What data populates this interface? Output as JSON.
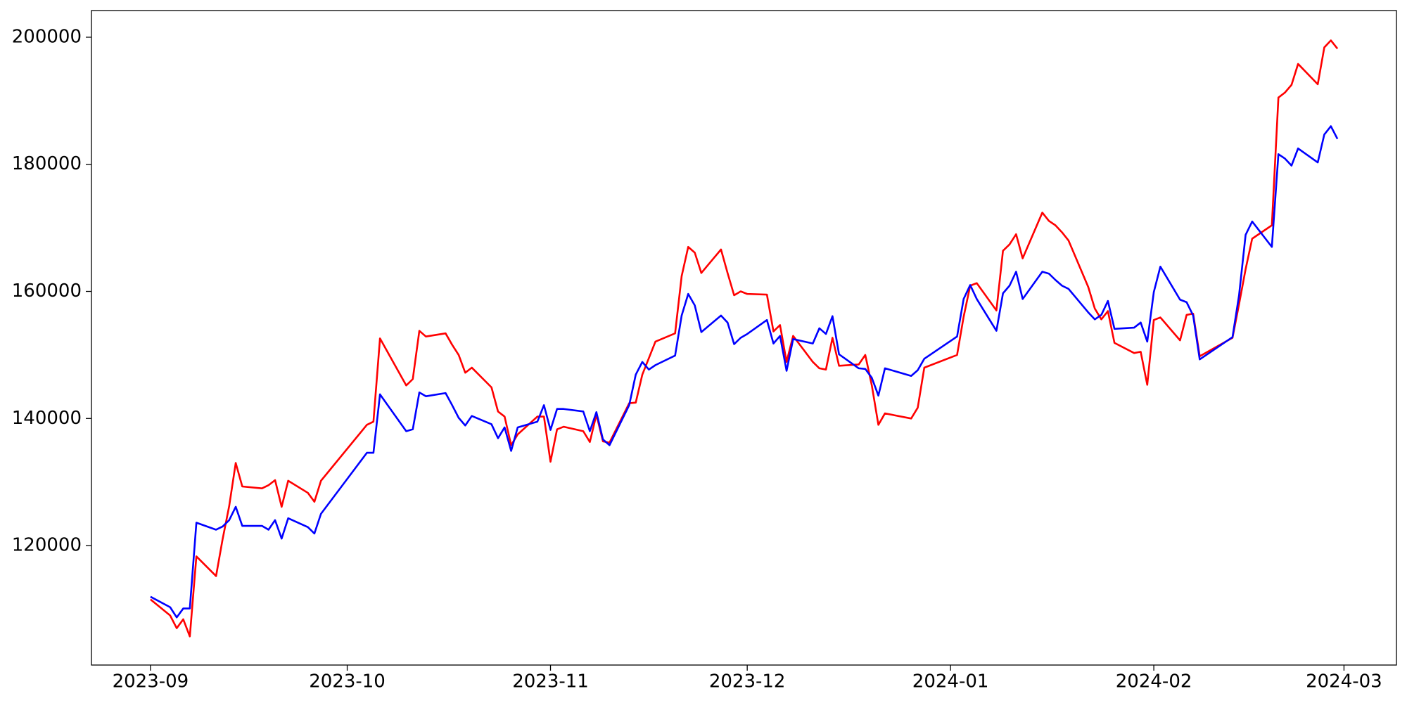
{
  "chart_data": {
    "type": "line",
    "x": [
      "2023-09-01",
      "2023-09-04",
      "2023-09-05",
      "2023-09-06",
      "2023-09-07",
      "2023-09-08",
      "2023-09-11",
      "2023-09-12",
      "2023-09-13",
      "2023-09-14",
      "2023-09-15",
      "2023-09-18",
      "2023-09-19",
      "2023-09-20",
      "2023-09-21",
      "2023-09-22",
      "2023-09-25",
      "2023-09-26",
      "2023-09-27",
      "2023-10-04",
      "2023-10-05",
      "2023-10-06",
      "2023-10-10",
      "2023-10-11",
      "2023-10-12",
      "2023-10-13",
      "2023-10-16",
      "2023-10-17",
      "2023-10-18",
      "2023-10-19",
      "2023-10-20",
      "2023-10-23",
      "2023-10-24",
      "2023-10-25",
      "2023-10-26",
      "2023-10-27",
      "2023-10-30",
      "2023-10-31",
      "2023-11-01",
      "2023-11-02",
      "2023-11-03",
      "2023-11-06",
      "2023-11-07",
      "2023-11-08",
      "2023-11-09",
      "2023-11-10",
      "2023-11-13",
      "2023-11-14",
      "2023-11-15",
      "2023-11-16",
      "2023-11-17",
      "2023-11-20",
      "2023-11-21",
      "2023-11-22",
      "2023-11-23",
      "2023-11-24",
      "2023-11-27",
      "2023-11-28",
      "2023-11-29",
      "2023-11-30",
      "2023-12-01",
      "2023-12-04",
      "2023-12-05",
      "2023-12-06",
      "2023-12-07",
      "2023-12-08",
      "2023-12-11",
      "2023-12-12",
      "2023-12-13",
      "2023-12-14",
      "2023-12-15",
      "2023-12-18",
      "2023-12-19",
      "2023-12-20",
      "2023-12-21",
      "2023-12-22",
      "2023-12-26",
      "2023-12-27",
      "2023-12-28",
      "2024-01-02",
      "2024-01-03",
      "2024-01-04",
      "2024-01-05",
      "2024-01-08",
      "2024-01-09",
      "2024-01-10",
      "2024-01-11",
      "2024-01-12",
      "2024-01-15",
      "2024-01-16",
      "2024-01-17",
      "2024-01-18",
      "2024-01-19",
      "2024-01-22",
      "2024-01-23",
      "2024-01-24",
      "2024-01-25",
      "2024-01-26",
      "2024-01-29",
      "2024-01-30",
      "2024-01-31",
      "2024-02-01",
      "2024-02-02",
      "2024-02-05",
      "2024-02-06",
      "2024-02-07",
      "2024-02-08",
      "2024-02-13",
      "2024-02-14",
      "2024-02-15",
      "2024-02-16",
      "2024-02-19",
      "2024-02-20",
      "2024-02-21",
      "2024-02-22",
      "2024-02-23",
      "2024-02-26",
      "2024-02-27",
      "2024-02-28",
      "2024-02-29"
    ],
    "series": [
      {
        "color": "#ff0000",
        "values": [
          111530,
          109000,
          107000,
          108400,
          105700,
          118300,
          115200,
          121000,
          126200,
          133000,
          129300,
          129000,
          129500,
          130300,
          126100,
          130200,
          128300,
          126900,
          130200,
          139000,
          139500,
          152600,
          145200,
          146200,
          153800,
          152900,
          153400,
          151600,
          150000,
          147200,
          148000,
          144900,
          141100,
          140300,
          135800,
          137500,
          140300,
          140300,
          133200,
          138300,
          138700,
          138000,
          136300,
          140600,
          136400,
          136200,
          142400,
          142500,
          146900,
          149500,
          152100,
          153400,
          162400,
          167000,
          166100,
          162900,
          166600,
          162900,
          159400,
          160000,
          159600,
          159500,
          153700,
          154700,
          148900,
          153000,
          148900,
          147900,
          147700,
          152700,
          148300,
          148500,
          150000,
          145200,
          139000,
          140800,
          140000,
          141700,
          148000,
          150000,
          156000,
          160900,
          161300,
          157000,
          166400,
          167400,
          169000,
          165200,
          172400,
          171100,
          170400,
          169300,
          168000,
          160700,
          157300,
          155600,
          156900,
          151900,
          150300,
          150500,
          145300,
          155500,
          155900,
          152300,
          156300,
          156500,
          149800,
          152700,
          158000,
          163500,
          168300,
          170400,
          190500,
          191300,
          192500,
          195800,
          192600,
          198400,
          199500,
          198200
        ]
      },
      {
        "color": "#0000ff",
        "values": [
          111950,
          110300,
          108700,
          110100,
          110100,
          123600,
          122500,
          123000,
          124000,
          126100,
          123100,
          123100,
          122500,
          124000,
          121100,
          124300,
          122900,
          121900,
          125000,
          134600,
          134600,
          143800,
          138000,
          138300,
          144100,
          143500,
          144000,
          142100,
          140100,
          138900,
          140400,
          139100,
          136900,
          138600,
          134900,
          138600,
          139500,
          142100,
          138200,
          141500,
          141500,
          141100,
          138000,
          141000,
          136700,
          135800,
          142100,
          146900,
          148900,
          147700,
          148400,
          149900,
          156200,
          159600,
          157800,
          153600,
          156200,
          155100,
          151700,
          152700,
          153300,
          155500,
          151800,
          153000,
          147500,
          152500,
          151800,
          154200,
          153300,
          156100,
          150100,
          147900,
          147800,
          146400,
          143600,
          147900,
          146700,
          147600,
          149400,
          152900,
          158800,
          161000,
          158800,
          153800,
          159700,
          160900,
          163100,
          158800,
          163100,
          162800,
          161800,
          160900,
          160400,
          156700,
          155600,
          156300,
          158500,
          154100,
          154300,
          155100,
          152100,
          159900,
          163900,
          158700,
          158300,
          156200,
          149300,
          152800,
          159400,
          168900,
          171000,
          167000,
          181600,
          180900,
          179800,
          182500,
          180300,
          184700,
          186000,
          184000
        ]
      }
    ],
    "xlim": [
      "2023-08-23",
      "2024-03-09"
    ],
    "xticks": [
      {
        "value": "2023-09-01",
        "label": "2023-09"
      },
      {
        "value": "2023-10-01",
        "label": "2023-10"
      },
      {
        "value": "2023-11-01",
        "label": "2023-11"
      },
      {
        "value": "2023-12-01",
        "label": "2023-12"
      },
      {
        "value": "2024-01-01",
        "label": "2024-01"
      },
      {
        "value": "2024-02-01",
        "label": "2024-02"
      },
      {
        "value": "2024-03-01",
        "label": "2024-03"
      }
    ],
    "ylim": [
      101200,
      204200
    ],
    "yticks": [
      120000,
      140000,
      160000,
      180000,
      200000
    ],
    "grid": false
  }
}
